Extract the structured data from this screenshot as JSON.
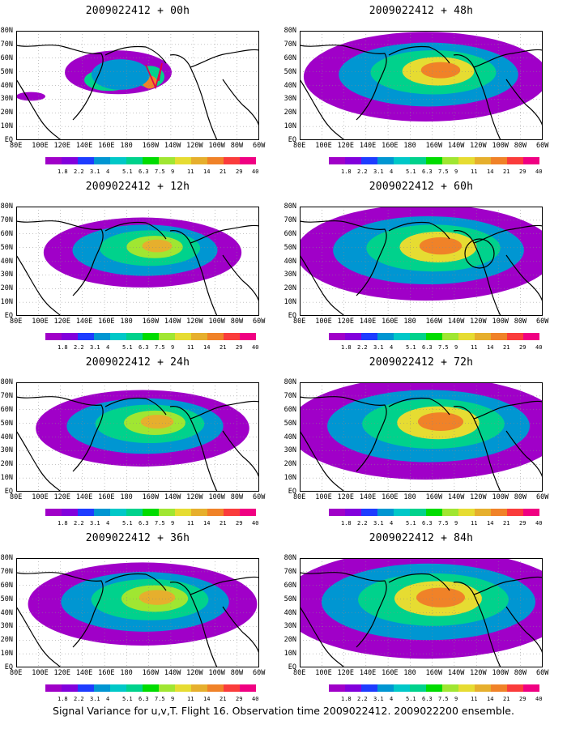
{
  "caption": "Signal Variance for u,v,T. Flight 16. Observation time 2009022412. 2009022200 ensemble.",
  "lat_labels": [
    "80N",
    "70N",
    "60N",
    "50N",
    "40N",
    "30N",
    "20N",
    "10N",
    "EQ"
  ],
  "lon_labels": [
    "80E",
    "100E",
    "120E",
    "140E",
    "160E",
    "180",
    "160W",
    "140W",
    "120W",
    "100W",
    "80W",
    "60W"
  ],
  "colorbar": {
    "labels": [
      "1.8",
      "2.2",
      "3.1",
      "4",
      "5.1",
      "6.3",
      "7.5",
      "9",
      "11",
      "14",
      "21",
      "29",
      "40"
    ],
    "colors": [
      "#a000c8",
      "#8200dc",
      "#1e3cff",
      "#0096d2",
      "#00c8c8",
      "#00d28c",
      "#00dc00",
      "#a0e632",
      "#e6dc32",
      "#e6af2d",
      "#f08228",
      "#fa3c3c",
      "#f00082"
    ]
  },
  "chart_data": [
    {
      "type": "heatmap",
      "title": "2009022412 + 00h",
      "lead_hours": 0,
      "lon_range": [
        "80E",
        "60W"
      ],
      "lat_range": [
        "EQ",
        "80N"
      ],
      "max_level": "21",
      "annotation": "flight track (red) over Gulf of Alaska"
    },
    {
      "type": "heatmap",
      "title": "2009022412 + 48h",
      "lead_hours": 48,
      "lon_range": [
        "80E",
        "60W"
      ],
      "lat_range": [
        "EQ",
        "80N"
      ],
      "max_level": "21"
    },
    {
      "type": "heatmap",
      "title": "2009022412 + 12h",
      "lead_hours": 12,
      "lon_range": [
        "80E",
        "60W"
      ],
      "lat_range": [
        "EQ",
        "80N"
      ],
      "max_level": "14"
    },
    {
      "type": "heatmap",
      "title": "2009022412 + 60h",
      "lead_hours": 60,
      "lon_range": [
        "80E",
        "60W"
      ],
      "lat_range": [
        "EQ",
        "80N"
      ],
      "max_level": "21",
      "annotation": "black circle over western North America"
    },
    {
      "type": "heatmap",
      "title": "2009022412 + 24h",
      "lead_hours": 24,
      "lon_range": [
        "80E",
        "60W"
      ],
      "lat_range": [
        "EQ",
        "80N"
      ],
      "max_level": "14"
    },
    {
      "type": "heatmap",
      "title": "2009022412 + 72h",
      "lead_hours": 72,
      "lon_range": [
        "80E",
        "60W"
      ],
      "lat_range": [
        "EQ",
        "80N"
      ],
      "max_level": "21"
    },
    {
      "type": "heatmap",
      "title": "2009022412 + 36h",
      "lead_hours": 36,
      "lon_range": [
        "80E",
        "60W"
      ],
      "lat_range": [
        "EQ",
        "80N"
      ],
      "max_level": "14"
    },
    {
      "type": "heatmap",
      "title": "2009022412 + 84h",
      "lead_hours": 84,
      "lon_range": [
        "80E",
        "60W"
      ],
      "lat_range": [
        "EQ",
        "80N"
      ],
      "max_level": "21"
    }
  ]
}
